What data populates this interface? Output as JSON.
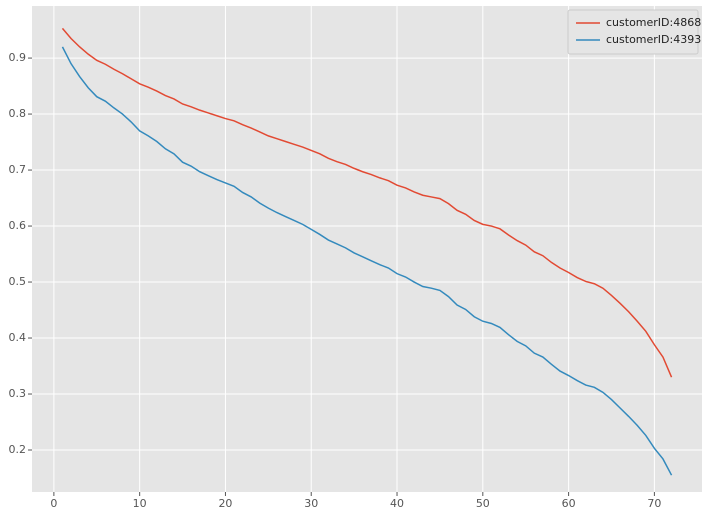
{
  "chart_data": {
    "type": "line",
    "x": [
      1,
      2,
      3,
      4,
      5,
      6,
      7,
      8,
      9,
      10,
      11,
      12,
      13,
      14,
      15,
      16,
      17,
      18,
      19,
      20,
      21,
      22,
      23,
      24,
      25,
      26,
      27,
      28,
      29,
      30,
      31,
      32,
      33,
      34,
      35,
      36,
      37,
      38,
      39,
      40,
      41,
      42,
      43,
      44,
      45,
      46,
      47,
      48,
      49,
      50,
      51,
      52,
      53,
      54,
      55,
      56,
      57,
      58,
      59,
      60,
      61,
      62,
      63,
      64,
      65,
      66,
      67,
      68,
      69,
      70,
      71,
      72
    ],
    "series": [
      {
        "name": "customerID:4868",
        "color": "#E24A33",
        "values": [
          0.953,
          0.935,
          0.92,
          0.907,
          0.896,
          0.889,
          0.88,
          0.872,
          0.863,
          0.854,
          0.848,
          0.841,
          0.833,
          0.827,
          0.818,
          0.813,
          0.807,
          0.802,
          0.797,
          0.792,
          0.788,
          0.781,
          0.775,
          0.768,
          0.761,
          0.756,
          0.751,
          0.746,
          0.741,
          0.735,
          0.729,
          0.721,
          0.715,
          0.71,
          0.703,
          0.697,
          0.692,
          0.686,
          0.681,
          0.673,
          0.668,
          0.661,
          0.655,
          0.652,
          0.649,
          0.64,
          0.628,
          0.621,
          0.61,
          0.603,
          0.6,
          0.595,
          0.584,
          0.574,
          0.566,
          0.554,
          0.547,
          0.535,
          0.525,
          0.517,
          0.508,
          0.501,
          0.497,
          0.489,
          0.476,
          0.462,
          0.447,
          0.43,
          0.412,
          0.388,
          0.366,
          0.33
        ]
      },
      {
        "name": "customerID:4393",
        "color": "#348ABD",
        "values": [
          0.92,
          0.89,
          0.867,
          0.847,
          0.831,
          0.823,
          0.811,
          0.8,
          0.786,
          0.77,
          0.761,
          0.751,
          0.738,
          0.729,
          0.714,
          0.707,
          0.697,
          0.69,
          0.683,
          0.677,
          0.671,
          0.66,
          0.652,
          0.641,
          0.632,
          0.624,
          0.617,
          0.61,
          0.603,
          0.594,
          0.585,
          0.575,
          0.568,
          0.561,
          0.552,
          0.545,
          0.538,
          0.531,
          0.525,
          0.515,
          0.509,
          0.5,
          0.492,
          0.489,
          0.485,
          0.474,
          0.459,
          0.451,
          0.438,
          0.43,
          0.426,
          0.419,
          0.406,
          0.394,
          0.386,
          0.373,
          0.366,
          0.353,
          0.341,
          0.333,
          0.324,
          0.316,
          0.312,
          0.303,
          0.29,
          0.275,
          0.26,
          0.244,
          0.226,
          0.203,
          0.184,
          0.155
        ]
      }
    ],
    "xlim": [
      -2.55,
      75.55
    ],
    "xticks": [
      0,
      10,
      20,
      30,
      40,
      50,
      60,
      70
    ],
    "ylim": [
      0.125,
      0.993
    ],
    "yticks": [
      0.2,
      0.3,
      0.4,
      0.5,
      0.6,
      0.7,
      0.8,
      0.9
    ],
    "grid": true,
    "legend": "upper right",
    "background": "#E5E5E5"
  }
}
